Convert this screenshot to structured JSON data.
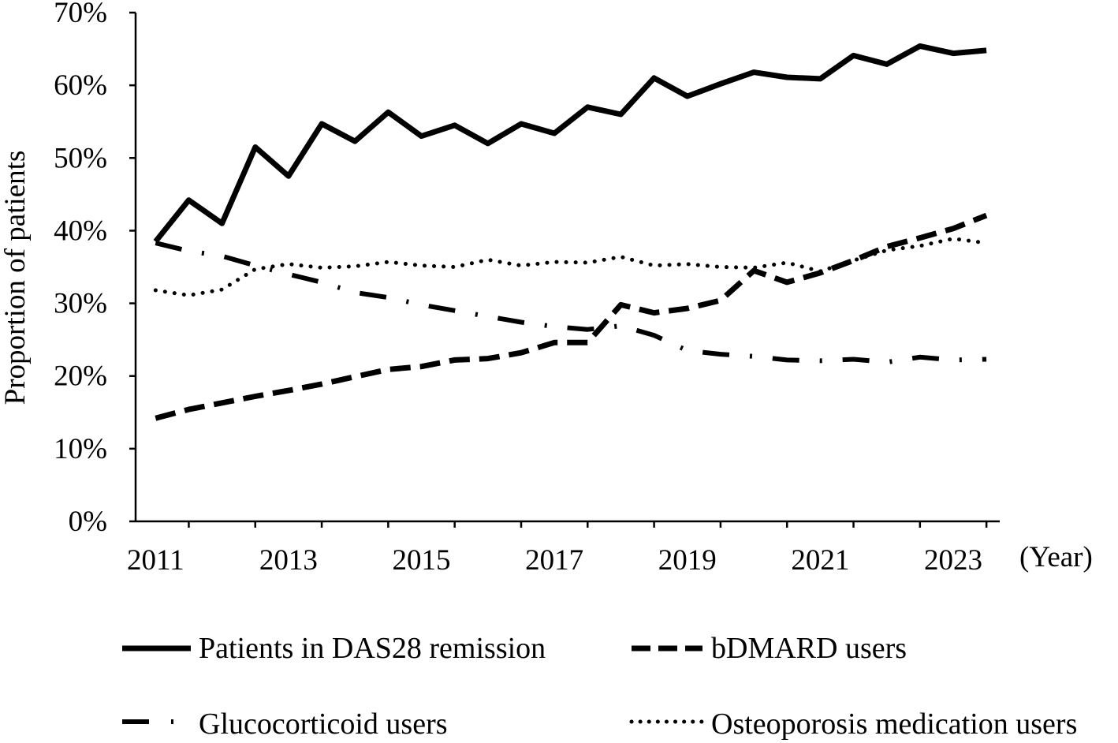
{
  "chart_data": {
    "type": "line",
    "title": "",
    "xlabel": "(Year)",
    "ylabel": "Proportion of patients",
    "ylim": [
      0,
      70
    ],
    "y_ticks": [
      "0%",
      "10%",
      "20%",
      "30%",
      "40%",
      "50%",
      "60%",
      "70%"
    ],
    "x_ticks": [
      "2011",
      "2013",
      "2015",
      "2017",
      "2019",
      "2021",
      "2023"
    ],
    "x_tick_values": [
      2011,
      2013,
      2015,
      2017,
      2019,
      2021,
      2023
    ],
    "xlim": [
      2010.7,
      2023.7
    ],
    "grid": false,
    "legend_position": "bottom",
    "x": [
      2011.0,
      2011.5,
      2012.0,
      2012.5,
      2013.0,
      2013.5,
      2014.0,
      2014.5,
      2015.0,
      2015.5,
      2016.0,
      2016.5,
      2017.0,
      2017.5,
      2018.0,
      2018.5,
      2019.0,
      2019.5,
      2020.0,
      2020.5,
      2021.0,
      2021.5,
      2022.0,
      2022.5,
      2023.0,
      2023.5
    ],
    "series": [
      {
        "name": "Patients in DAS28 remission",
        "dash": "solid",
        "values": [
          38.5,
          44.2,
          41.0,
          51.5,
          47.5,
          54.7,
          52.3,
          56.3,
          53.0,
          54.5,
          52.0,
          54.7,
          53.4,
          57.0,
          56.0,
          61.0,
          58.5,
          60.2,
          61.8,
          61.1,
          60.9,
          64.1,
          62.9,
          65.4,
          64.4,
          64.8
        ]
      },
      {
        "name": "bDMARD users",
        "dash": "dash",
        "values": [
          14.2,
          15.4,
          16.3,
          17.2,
          18.0,
          18.9,
          19.9,
          20.9,
          21.3,
          22.2,
          22.4,
          23.2,
          24.6,
          24.6,
          29.8,
          28.7,
          29.3,
          30.4,
          34.5,
          32.9,
          34.2,
          35.9,
          37.8,
          39.0,
          40.3,
          42.1
        ]
      },
      {
        "name": "Glucocorticoid users",
        "dash": "dashdot",
        "values": [
          38.3,
          37.2,
          36.5,
          35.2,
          34.0,
          32.9,
          31.5,
          30.8,
          29.8,
          29.0,
          28.2,
          27.4,
          26.8,
          26.4,
          26.9,
          25.6,
          23.5,
          23.0,
          22.7,
          22.2,
          22.1,
          22.3,
          21.9,
          22.6,
          22.2,
          22.3
        ]
      },
      {
        "name": "Osteoporosis medication users",
        "dash": "dot",
        "values": [
          31.8,
          31.1,
          31.9,
          34.7,
          35.4,
          34.9,
          35.1,
          35.7,
          35.2,
          35.0,
          36.0,
          35.2,
          35.7,
          35.6,
          36.4,
          35.2,
          35.4,
          35.0,
          34.9,
          35.6,
          34.4,
          35.9,
          37.3,
          37.9,
          38.9,
          38.3
        ]
      }
    ]
  }
}
